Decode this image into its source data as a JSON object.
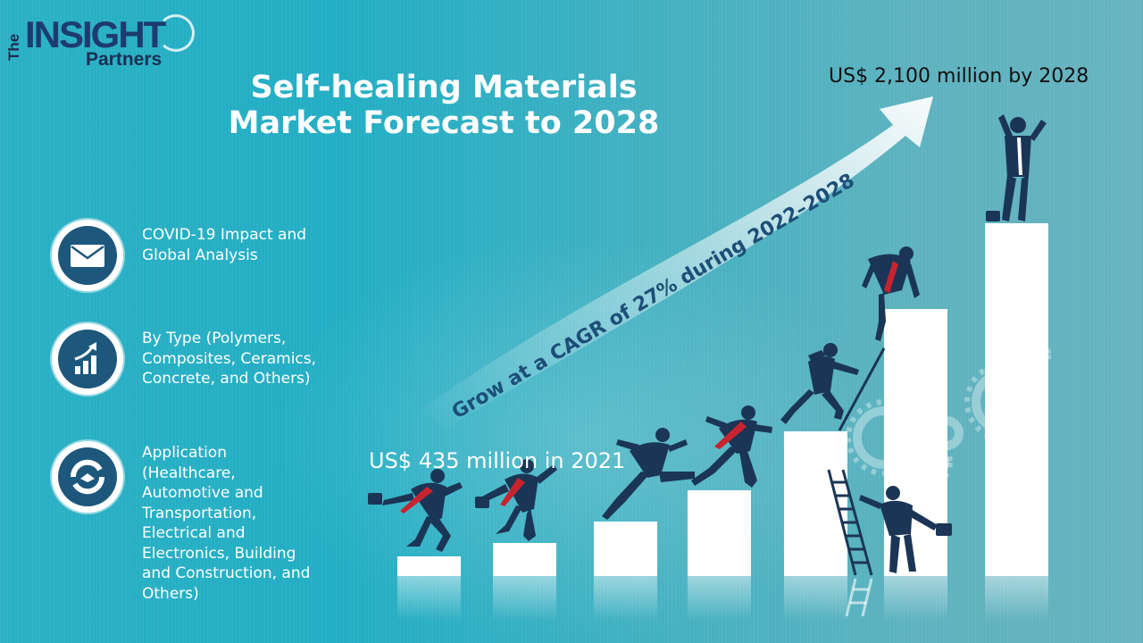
{
  "brand": {
    "logo_the": "The",
    "logo_insight": "INSIGHT",
    "logo_partners": "Partners"
  },
  "title_line1": "Self-healing Materials",
  "title_line2": "Market Forecast to 2028",
  "value_2028": "US$ 2,100 million by 2028",
  "value_2021": "US$ 435 million in 2021",
  "cagr_text": "Grow at a CAGR of 27% during 2022–2028",
  "bullets": [
    {
      "icon": "envelope-icon",
      "text_lines": [
        "COVID-19 Impact and",
        "Global Analysis"
      ]
    },
    {
      "icon": "growth-chart-icon",
      "text_lines": [
        "By Type (Polymers,",
        "Composites, Ceramics,",
        "Concrete, and Others)"
      ]
    },
    {
      "icon": "handshake-icon",
      "text_lines": [
        "Application",
        "(Healthcare,",
        "Automotive and",
        "Transportation,",
        "Electrical and",
        "Electronics, Building",
        "and Construction, and",
        "Others)"
      ]
    }
  ],
  "colors": {
    "background": "#2bb0c4",
    "title_text": "#ffffff",
    "cagr_text": "#1d4e78",
    "icon_fill": "#1d577c",
    "figure_navy": "#1b3556",
    "tie_red": "#c8242f"
  }
}
